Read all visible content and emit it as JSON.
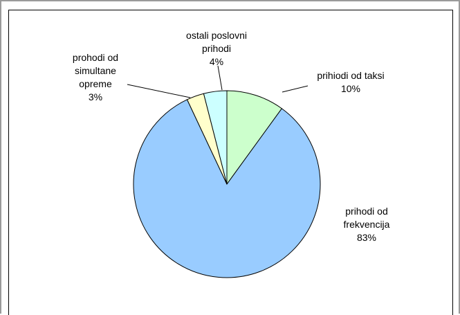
{
  "chart_data": {
    "type": "pie",
    "slices": [
      {
        "label_lines": [
          "prihiodi od taksi"
        ],
        "pct": "10%",
        "value": 10,
        "color": "#CCFFCC"
      },
      {
        "label_lines": [
          "prihodi od",
          "frekvencija"
        ],
        "pct": "83%",
        "value": 83,
        "color": "#99CCFF"
      },
      {
        "label_lines": [
          "prohodi od",
          "simultane",
          "opreme"
        ],
        "pct": "3%",
        "value": 3,
        "color": "#FFFFCC"
      },
      {
        "label_lines": [
          "ostali poslovni",
          "prihodi"
        ],
        "pct": "4%",
        "value": 4,
        "color": "#CCFFFF"
      }
    ],
    "start_angle_deg": 0,
    "direction": "clockwise",
    "legend": "none"
  }
}
